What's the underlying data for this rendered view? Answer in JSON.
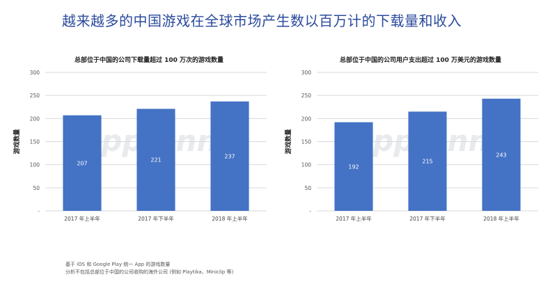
{
  "title": "越来越多的中国游戏在全球市场产生数以百万计的下载量和收入",
  "watermark": "App Annie",
  "footnotes": [
    "基于 iOS 和 Google Play 统一 App 的游戏数量",
    "分析不包括总部位于中国的公司收购的海外公司 (例如 Playtika、Miniclip 等)"
  ],
  "colors": {
    "bar": "#4472c4",
    "title": "#2a4a9c",
    "grid": "#d9d9d9"
  },
  "chart_data": [
    {
      "type": "bar",
      "title": "总部位于中国的公司下载量超过 100 万次的游戏数量",
      "ylabel": "游戏数量",
      "xlabel": "",
      "categories": [
        "2017 年上半年",
        "2017 年下半年",
        "2018 年上半年"
      ],
      "values": [
        207,
        221,
        237
      ],
      "ylim": [
        0,
        300
      ],
      "yticks": [
        0,
        50,
        100,
        150,
        200,
        250,
        300
      ],
      "ytick_labels": [
        "-",
        "50",
        "100",
        "150",
        "200",
        "250",
        "300"
      ],
      "grid": true
    },
    {
      "type": "bar",
      "title": "总部位于中国的公司用户支出超过 100 万美元的游戏数量",
      "ylabel": "游戏数量",
      "xlabel": "",
      "categories": [
        "2017 年上半年",
        "2017 年下半年",
        "2018 年上半年"
      ],
      "values": [
        192,
        215,
        243
      ],
      "ylim": [
        0,
        300
      ],
      "yticks": [
        0,
        50,
        100,
        150,
        200,
        250,
        300
      ],
      "ytick_labels": [
        "-",
        "50",
        "100",
        "150",
        "200",
        "250",
        "300"
      ],
      "grid": true
    }
  ]
}
